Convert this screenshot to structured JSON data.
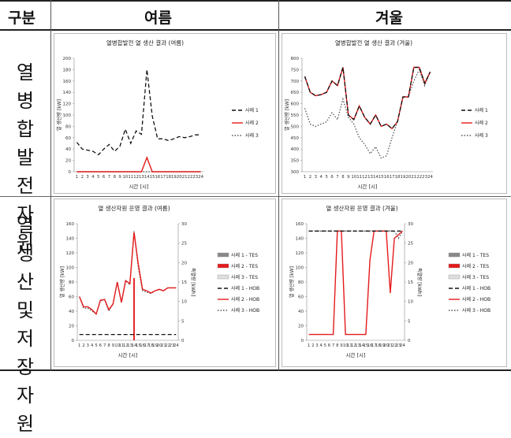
{
  "table": {
    "header": {
      "col0": "구분",
      "col1": "여름",
      "col2": "겨울"
    },
    "row1_label": [
      "열",
      "병합",
      "발전",
      "자원"
    ],
    "row2_label": [
      "열",
      "생산",
      "및",
      "저장",
      "자원"
    ]
  },
  "colors": {
    "black": "#111111",
    "red": "#e41a1c",
    "gray": "#666666",
    "dotted": "#555555"
  },
  "chart_data": [
    {
      "type": "line",
      "title": "열병합발전 열 생산 결과 (여름)",
      "xlabel": "시간 [시]",
      "ylabel": "열 생산량 [kW]",
      "ylim": [
        0,
        200
      ],
      "yticks": [
        0,
        20,
        40,
        60,
        80,
        100,
        120,
        140,
        160,
        180,
        200
      ],
      "x": [
        1,
        2,
        3,
        4,
        5,
        6,
        7,
        8,
        9,
        10,
        11,
        12,
        13,
        14,
        15,
        16,
        17,
        18,
        19,
        20,
        21,
        22,
        23,
        24
      ],
      "series": [
        {
          "name": "사례 1",
          "style": "dashed",
          "color": "#111111",
          "values": [
            52,
            40,
            38,
            36,
            30,
            40,
            48,
            36,
            45,
            75,
            50,
            72,
            66,
            180,
            98,
            58,
            58,
            55,
            58,
            62,
            60,
            62,
            65,
            65
          ]
        },
        {
          "name": "사례 2",
          "style": "solid",
          "color": "#e41a1c",
          "values": [
            0,
            0,
            0,
            0,
            0,
            0,
            0,
            0,
            0,
            0,
            0,
            0,
            0,
            25,
            0,
            0,
            0,
            0,
            0,
            0,
            0,
            0,
            0,
            0
          ]
        },
        {
          "name": "사례 3",
          "style": "dotted",
          "color": "#555555",
          "values": [
            0,
            0,
            0,
            0,
            0,
            0,
            0,
            0,
            0,
            0,
            0,
            0,
            0,
            0,
            0,
            0,
            0,
            0,
            0,
            0,
            0,
            0,
            0,
            0
          ]
        }
      ],
      "legend": "right"
    },
    {
      "type": "line",
      "title": "열병합발전 열 생산 결과 (겨울)",
      "xlabel": "시간 [시]",
      "ylabel": "열 생산량 [kW]",
      "ylim": [
        300,
        800
      ],
      "yticks": [
        300,
        350,
        400,
        450,
        500,
        550,
        600,
        650,
        700,
        750,
        800
      ],
      "x": [
        1,
        2,
        3,
        4,
        5,
        6,
        7,
        8,
        9,
        10,
        11,
        12,
        13,
        14,
        15,
        16,
        17,
        18,
        19,
        20,
        21,
        22,
        23,
        24
      ],
      "series": [
        {
          "name": "사례 1",
          "style": "dashed",
          "color": "#111111",
          "values": [
            720,
            650,
            635,
            640,
            650,
            700,
            680,
            760,
            550,
            530,
            590,
            540,
            510,
            550,
            500,
            510,
            490,
            520,
            630,
            630,
            760,
            760,
            690,
            740
          ]
        },
        {
          "name": "사례 2",
          "style": "solid",
          "color": "#e41a1c",
          "values": [
            720,
            650,
            635,
            640,
            650,
            700,
            680,
            760,
            550,
            530,
            590,
            540,
            510,
            550,
            500,
            510,
            490,
            520,
            630,
            630,
            760,
            760,
            690,
            740
          ]
        },
        {
          "name": "사례 3",
          "style": "dotted",
          "color": "#555555",
          "values": [
            580,
            510,
            500,
            510,
            520,
            560,
            530,
            620,
            540,
            510,
            450,
            420,
            380,
            410,
            360,
            370,
            450,
            520,
            630,
            630,
            700,
            750,
            680,
            740
          ]
        }
      ],
      "legend": "right"
    },
    {
      "type": "line",
      "title": "열 생산자원 운영 결과 (여름)",
      "xlabel": "시간 [시]",
      "ylabel": "열 생산량 [kW]",
      "ylabel_right": "축열량 [kWh]",
      "ylim": [
        0,
        160
      ],
      "yticks": [
        0,
        20,
        40,
        60,
        80,
        100,
        120,
        140,
        160
      ],
      "ylim_right": [
        0,
        30
      ],
      "yticks_right": [
        0,
        5,
        10,
        15,
        20,
        25,
        30
      ],
      "x": [
        1,
        2,
        3,
        4,
        5,
        6,
        7,
        8,
        9,
        10,
        11,
        12,
        13,
        14,
        15,
        16,
        17,
        18,
        19,
        20,
        21,
        22,
        23,
        24
      ],
      "series": [
        {
          "name": "사례 1 - TES",
          "kind": "bar",
          "color": "#888888",
          "axis": "right",
          "values": [
            0,
            0,
            0,
            0,
            0,
            0,
            0,
            0,
            0,
            0,
            0,
            0,
            0,
            0,
            0,
            0,
            0,
            0,
            0,
            0,
            0,
            0,
            0,
            0
          ]
        },
        {
          "name": "사례 2 - TES",
          "kind": "bar",
          "color": "#e41a1c",
          "axis": "right",
          "values": [
            0,
            0,
            0,
            0,
            0,
            0,
            0,
            0,
            0,
            0,
            0,
            0,
            0,
            16,
            0,
            0,
            0,
            0,
            0,
            0,
            0,
            0,
            0,
            0
          ]
        },
        {
          "name": "사례 3 - TES",
          "kind": "bar",
          "color": "#dddddd",
          "axis": "right",
          "values": [
            0,
            0,
            0,
            0,
            0,
            0,
            0,
            0,
            0,
            0,
            0,
            0,
            0,
            0,
            0,
            0,
            0,
            0,
            0,
            0,
            0,
            0,
            0,
            0
          ]
        },
        {
          "name": "사례 1 - HOB",
          "style": "dashed",
          "color": "#111111",
          "values": [
            8,
            8,
            8,
            8,
            8,
            8,
            8,
            8,
            8,
            8,
            8,
            8,
            8,
            8,
            8,
            8,
            8,
            8,
            8,
            8,
            8,
            8,
            8,
            8
          ]
        },
        {
          "name": "사례 2 - HOB",
          "style": "solid",
          "color": "#e41a1c",
          "values": [
            60,
            46,
            46,
            42,
            36,
            55,
            56,
            42,
            50,
            80,
            52,
            82,
            78,
            148,
            105,
            70,
            68,
            65,
            68,
            70,
            68,
            72,
            72,
            72
          ]
        },
        {
          "name": "사례 3 - HOB",
          "style": "dotted",
          "color": "#555555",
          "values": [
            60,
            44,
            44,
            40,
            36,
            54,
            56,
            40,
            50,
            80,
            52,
            82,
            76,
            150,
            100,
            68,
            66,
            64,
            68,
            70,
            68,
            72,
            72,
            72
          ]
        }
      ],
      "legend": "right"
    },
    {
      "type": "line",
      "title": "열 생산자원 운영 결과 (겨울)",
      "xlabel": "시간 [시]",
      "ylabel": "열 생산량 [kW]",
      "ylabel_right": "축열량 [kWh]",
      "ylim": [
        0,
        160
      ],
      "yticks": [
        0,
        20,
        40,
        60,
        80,
        100,
        120,
        140,
        160
      ],
      "ylim_right": [
        0,
        30
      ],
      "yticks_right": [
        0,
        5,
        10,
        15,
        20,
        25,
        30
      ],
      "x": [
        1,
        2,
        3,
        4,
        5,
        6,
        7,
        8,
        9,
        10,
        11,
        12,
        13,
        14,
        15,
        16,
        17,
        18,
        19,
        20,
        21,
        22,
        23,
        24
      ],
      "series": [
        {
          "name": "사례 1 - TES",
          "kind": "bar",
          "color": "#888888",
          "axis": "right",
          "values": [
            0,
            0,
            0,
            0,
            0,
            0,
            0,
            0,
            0,
            0,
            0,
            0,
            0,
            0,
            0,
            0,
            0,
            0,
            0,
            0,
            0,
            0,
            0,
            0
          ]
        },
        {
          "name": "사례 2 - TES",
          "kind": "bar",
          "color": "#e41a1c",
          "axis": "right",
          "values": [
            0,
            0,
            0,
            0,
            0,
            0,
            0,
            0,
            0,
            0,
            0,
            0,
            0,
            0,
            0,
            0,
            0,
            0,
            0,
            0,
            0,
            0,
            0,
            0
          ]
        },
        {
          "name": "사례 3 - TES",
          "kind": "bar",
          "color": "#dddddd",
          "axis": "right",
          "values": [
            0,
            0,
            0,
            0,
            0,
            0,
            0,
            0,
            0,
            0,
            0,
            0,
            0,
            0,
            0,
            0,
            0,
            0,
            0,
            0,
            0,
            0,
            0,
            0
          ]
        },
        {
          "name": "사례 1 - HOB",
          "style": "dashed",
          "color": "#111111",
          "values": [
            150,
            150,
            150,
            150,
            150,
            150,
            150,
            150,
            150,
            150,
            150,
            150,
            150,
            150,
            150,
            150,
            150,
            150,
            150,
            150,
            150,
            150,
            150,
            150
          ]
        },
        {
          "name": "사례 2 - HOB",
          "style": "solid",
          "color": "#e41a1c",
          "values": [
            8,
            8,
            8,
            8,
            8,
            8,
            8,
            150,
            150,
            8,
            8,
            8,
            8,
            8,
            8,
            110,
            150,
            150,
            150,
            150,
            65,
            140,
            145,
            150
          ]
        },
        {
          "name": "사례 3 - HOB",
          "style": "dotted",
          "color": "#555555",
          "values": [
            150,
            150,
            150,
            150,
            150,
            150,
            150,
            150,
            150,
            150,
            150,
            150,
            150,
            150,
            150,
            150,
            150,
            150,
            150,
            150,
            150,
            150,
            140,
            150
          ]
        }
      ],
      "legend": "right"
    }
  ]
}
